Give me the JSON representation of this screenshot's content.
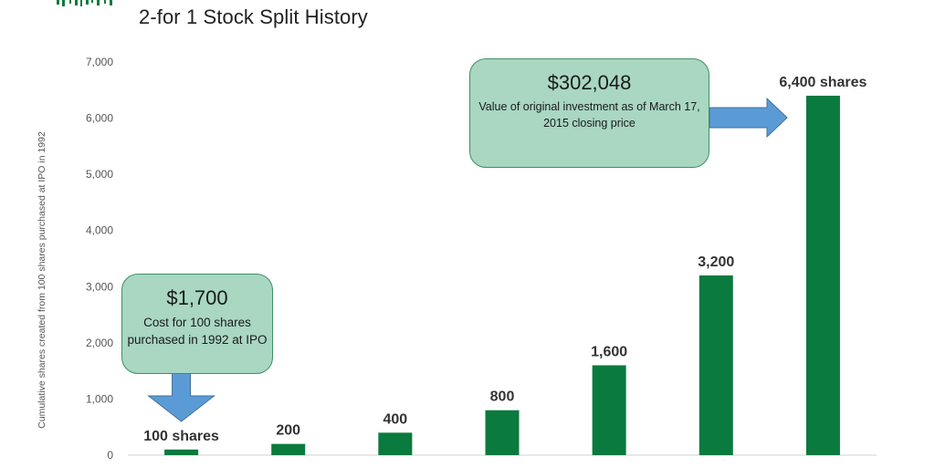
{
  "header": {
    "title": "2-for 1 Stock Split History"
  },
  "colors": {
    "bar": "#0b7a3e",
    "callout_fill": "#a9d7c2",
    "callout_border": "#3f8f62",
    "arrow": "#5b9bd5",
    "axis": "#d0d0d0",
    "tick_text": "#555555",
    "label_text": "#333333"
  },
  "chart_data": {
    "type": "bar",
    "title": "2-for 1 Stock Split History",
    "xlabel": "",
    "ylabel": "Cumulative shares created from 100 shares purchased at IPO in 1992",
    "ylim": [
      0,
      7000
    ],
    "yticks": [
      0,
      1000,
      2000,
      3000,
      4000,
      5000,
      6000,
      7000
    ],
    "ytick_labels": [
      "0",
      "1,000",
      "2,000",
      "3,000",
      "4,000",
      "5,000",
      "6,000",
      "7,000"
    ],
    "grid": false,
    "categories": [
      "",
      "",
      "",
      "",
      "",
      "",
      ""
    ],
    "values": [
      100,
      200,
      400,
      800,
      1600,
      3200,
      6400
    ],
    "data_labels": [
      "100 shares",
      "200",
      "400",
      "800",
      "1,600",
      "3,200",
      "6,400 shares"
    ]
  },
  "callouts": {
    "left": {
      "amount": "$1,700",
      "description": "Cost for 100 shares purchased in 1992 at IPO"
    },
    "right": {
      "amount": "$302,048",
      "description": "Value of original investment as of March 17, 2015 closing price"
    }
  }
}
